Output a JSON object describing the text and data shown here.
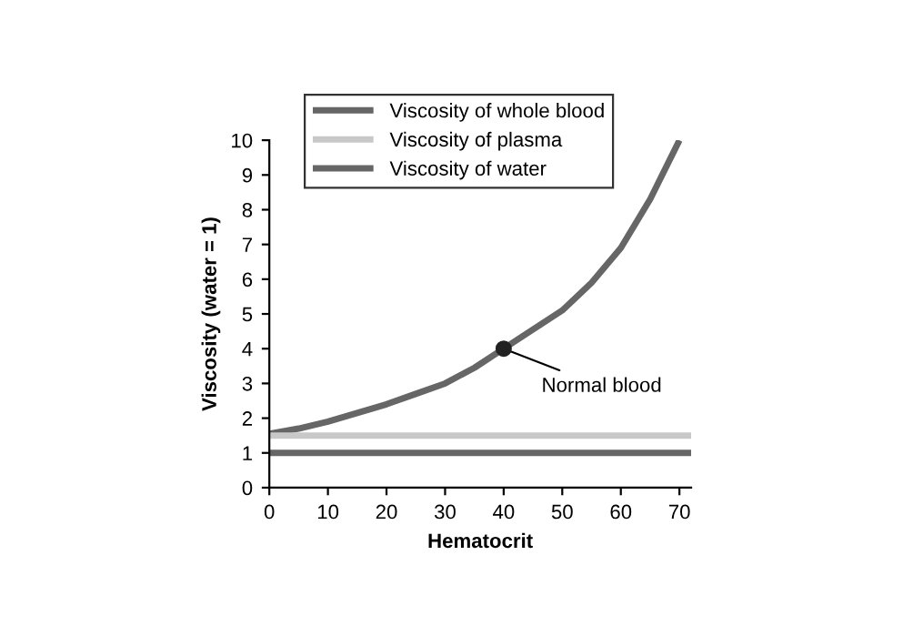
{
  "chart_data": {
    "type": "line",
    "xlabel": "Hematocrit",
    "ylabel": "Viscosity (water = 1)",
    "series": [
      {
        "name": "Viscosity of whole blood",
        "color": "#666666",
        "x": [
          0,
          5,
          10,
          15,
          20,
          25,
          30,
          35,
          40,
          45,
          50,
          55,
          60,
          65,
          70
        ],
        "values": [
          1.55,
          1.7,
          1.9,
          2.15,
          2.4,
          2.7,
          3.0,
          3.45,
          4.0,
          4.55,
          5.1,
          5.9,
          6.9,
          8.3,
          10.0
        ]
      },
      {
        "name": "Viscosity of plasma",
        "color": "#c8c8c8",
        "x": [
          0,
          72
        ],
        "values": [
          1.5,
          1.5
        ]
      },
      {
        "name": "Viscosity of water",
        "color": "#666666",
        "x": [
          0,
          72
        ],
        "values": [
          1.0,
          1.0
        ]
      },
      {
        "type": "scatter",
        "color": "#222222",
        "x": [
          40
        ],
        "values": [
          4.0
        ]
      }
    ],
    "annotations": [
      {
        "text": "Normal blood",
        "x": 40,
        "y": 4.0
      }
    ],
    "xlim": [
      0,
      72
    ],
    "xticks": [
      0,
      10,
      20,
      30,
      40,
      50,
      60,
      70
    ],
    "ylim": [
      0,
      10
    ],
    "yticks": [
      0,
      1,
      2,
      3,
      4,
      5,
      6,
      7,
      8,
      9,
      10
    ],
    "grid": false,
    "legend": "top left"
  }
}
